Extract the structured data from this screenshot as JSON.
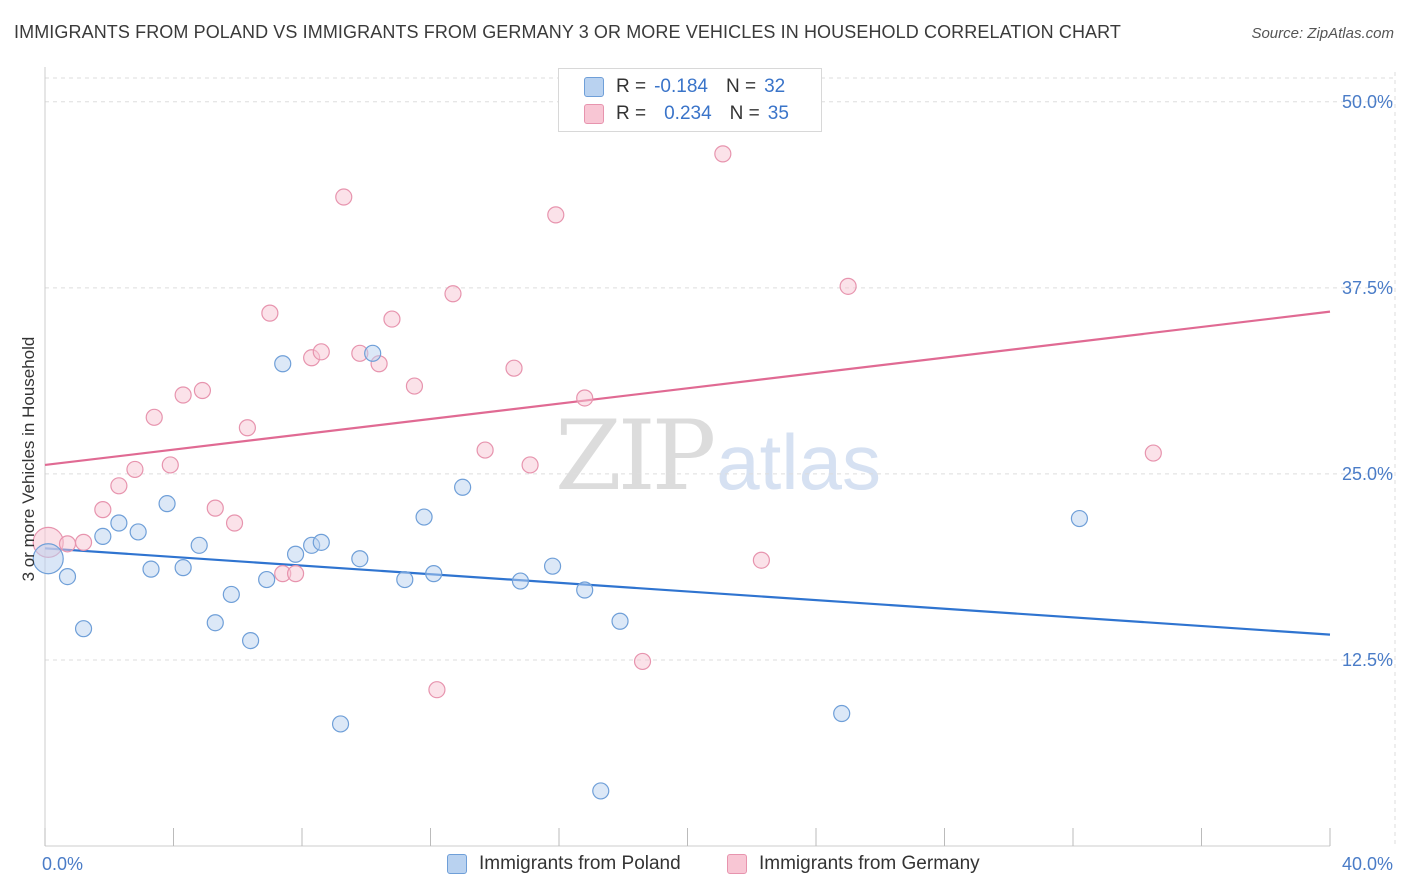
{
  "title": "IMMIGRANTS FROM POLAND VS IMMIGRANTS FROM GERMANY 3 OR MORE VEHICLES IN HOUSEHOLD CORRELATION CHART",
  "source": "Source: ZipAtlas.com",
  "watermark": {
    "zip": "ZIP",
    "atlas": "atlas"
  },
  "legend": {
    "poland": {
      "r_label": "R =",
      "r_value": "-0.184",
      "n_label": "N =",
      "n_value": "32"
    },
    "germany": {
      "r_label": "R =",
      "r_value": "0.234",
      "n_label": "N =",
      "n_value": "35"
    }
  },
  "bottom_legend": {
    "poland": "Immigrants from Poland",
    "germany": "Immigrants from Germany"
  },
  "colors": {
    "poland_fill": "#b9d2f0",
    "poland_stroke": "#6f9fd8",
    "poland_line": "#2f74d0",
    "germany_fill": "#f8c6d4",
    "germany_stroke": "#e794ae",
    "germany_line": "#e06a93",
    "tick_text": "#4a7cc7",
    "grid": "#dddddd"
  },
  "chart_data": {
    "type": "scatter",
    "title": "IMMIGRANTS FROM POLAND VS IMMIGRANTS FROM GERMANY 3 OR MORE VEHICLES IN HOUSEHOLD CORRELATION CHART",
    "xlabel": "",
    "ylabel": "3 or more Vehicles in Household",
    "xlim": [
      0,
      40
    ],
    "ylim": [
      0,
      52
    ],
    "x_tick_labels": [
      "0.0%",
      "40.0%"
    ],
    "y_ticks": [
      12.5,
      25.0,
      37.5,
      50.0
    ],
    "y_tick_labels": [
      "12.5%",
      "25.0%",
      "37.5%",
      "50.0%"
    ],
    "grid": true,
    "legend_position": "top-center",
    "series": [
      {
        "name": "Immigrants from Poland",
        "points": [
          [
            0.1,
            19.3
          ],
          [
            0.7,
            18.1
          ],
          [
            1.2,
            14.6
          ],
          [
            1.8,
            20.8
          ],
          [
            2.3,
            21.7
          ],
          [
            2.9,
            21.1
          ],
          [
            3.3,
            18.6
          ],
          [
            3.8,
            23.0
          ],
          [
            4.3,
            18.7
          ],
          [
            4.8,
            20.2
          ],
          [
            5.3,
            15.0
          ],
          [
            5.8,
            16.9
          ],
          [
            6.4,
            13.8
          ],
          [
            6.9,
            17.9
          ],
          [
            7.4,
            32.4
          ],
          [
            7.8,
            19.6
          ],
          [
            8.3,
            20.2
          ],
          [
            8.6,
            20.4
          ],
          [
            9.2,
            8.2
          ],
          [
            9.8,
            19.3
          ],
          [
            10.2,
            33.1
          ],
          [
            11.2,
            17.9
          ],
          [
            11.8,
            22.1
          ],
          [
            12.1,
            18.3
          ],
          [
            13.0,
            24.1
          ],
          [
            14.8,
            17.8
          ],
          [
            15.8,
            18.8
          ],
          [
            16.8,
            17.2
          ],
          [
            17.3,
            3.7
          ],
          [
            17.9,
            15.1
          ],
          [
            24.8,
            8.9
          ],
          [
            32.2,
            22.0
          ]
        ],
        "trend": {
          "x": [
            0,
            40
          ],
          "y": [
            20.0,
            14.2
          ]
        }
      },
      {
        "name": "Immigrants from Germany",
        "points": [
          [
            0.1,
            20.4
          ],
          [
            0.7,
            20.3
          ],
          [
            1.2,
            20.4
          ],
          [
            1.8,
            22.6
          ],
          [
            2.3,
            24.2
          ],
          [
            2.8,
            25.3
          ],
          [
            3.4,
            28.8
          ],
          [
            3.9,
            25.6
          ],
          [
            4.3,
            30.3
          ],
          [
            4.9,
            30.6
          ],
          [
            5.3,
            22.7
          ],
          [
            5.9,
            21.7
          ],
          [
            6.3,
            28.1
          ],
          [
            7.0,
            35.8
          ],
          [
            7.4,
            18.3
          ],
          [
            7.8,
            18.3
          ],
          [
            8.3,
            32.8
          ],
          [
            8.6,
            33.2
          ],
          [
            9.3,
            43.6
          ],
          [
            9.8,
            33.1
          ],
          [
            10.4,
            32.4
          ],
          [
            10.8,
            35.4
          ],
          [
            11.5,
            30.9
          ],
          [
            12.2,
            10.5
          ],
          [
            12.7,
            37.1
          ],
          [
            13.7,
            26.6
          ],
          [
            14.6,
            32.1
          ],
          [
            15.1,
            25.6
          ],
          [
            15.9,
            42.4
          ],
          [
            16.8,
            30.1
          ],
          [
            18.6,
            12.4
          ],
          [
            21.1,
            46.5
          ],
          [
            22.3,
            19.2
          ],
          [
            25.0,
            37.6
          ],
          [
            34.5,
            26.4
          ]
        ],
        "trend": {
          "x": [
            0,
            40
          ],
          "y": [
            25.6,
            35.9
          ]
        }
      }
    ]
  }
}
